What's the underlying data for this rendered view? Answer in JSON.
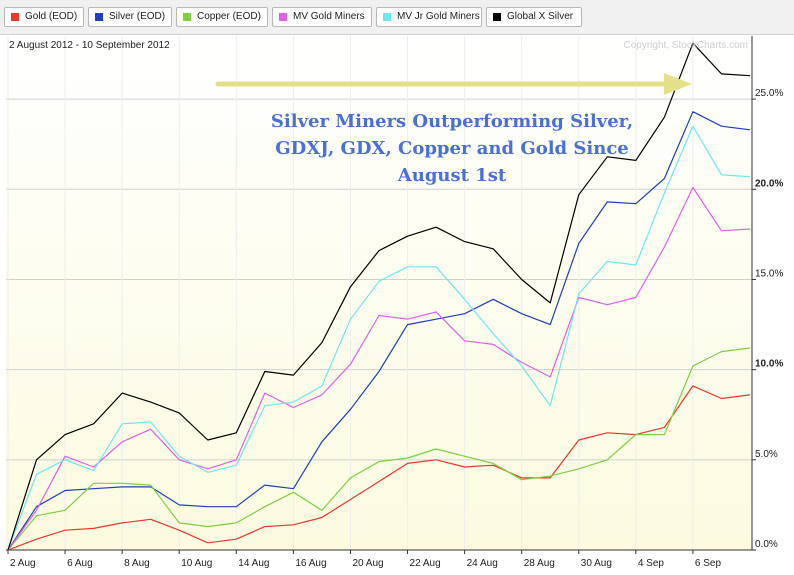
{
  "legend": [
    {
      "label": "Gold (EOD)",
      "color": "#e8392a"
    },
    {
      "label": "Silver (EOD)",
      "color": "#1f3fbf"
    },
    {
      "label": "Copper (EOD)",
      "color": "#7ed040"
    },
    {
      "label": "MV Gold Miners",
      "color": "#e060e8"
    },
    {
      "label": "MV Jr Gold Miners",
      "color": "#6ee6f0"
    },
    {
      "label": "Global X Silver",
      "color": "#000000"
    }
  ],
  "date_range": "2 August 2012 - 10 September 2012",
  "copyright": "Copyright, StockCharts.com",
  "annotation": {
    "lines": [
      "Silver Miners Outperforming Silver,",
      "GDXJ, GDX, Copper and Gold Since",
      "August 1st"
    ],
    "color": "#4a6fd8",
    "arrow_color": "#e4e08a"
  },
  "chart_data": {
    "type": "line",
    "x": [
      "2 Aug",
      "3 Aug",
      "6 Aug",
      "7 Aug",
      "8 Aug",
      "9 Aug",
      "10 Aug",
      "13 Aug",
      "14 Aug",
      "15 Aug",
      "16 Aug",
      "17 Aug",
      "20 Aug",
      "21 Aug",
      "22 Aug",
      "23 Aug",
      "24 Aug",
      "27 Aug",
      "28 Aug",
      "29 Aug",
      "30 Aug",
      "31 Aug",
      "4 Sep",
      "5 Sep",
      "6 Sep",
      "7 Sep",
      "10 Sep"
    ],
    "x_tick_labels": [
      "2 Aug",
      "6 Aug",
      "8 Aug",
      "10 Aug",
      "14 Aug",
      "16 Aug",
      "20 Aug",
      "22 Aug",
      "24 Aug",
      "28 Aug",
      "30 Aug",
      "4 Sep",
      "6 Sep"
    ],
    "x_tick_indices": [
      0,
      2,
      4,
      6,
      8,
      10,
      12,
      14,
      16,
      18,
      20,
      22,
      24
    ],
    "y_ticks": [
      0,
      5,
      10,
      15,
      20,
      25
    ],
    "y_tick_labels": [
      "0.0%",
      "5.0%",
      "10.0%",
      "15.0%",
      "20.0%",
      "25.0%"
    ],
    "ylim": [
      0,
      28.5
    ],
    "grid": true,
    "series": [
      {
        "name": "Gold (EOD)",
        "values": [
          0,
          0.6,
          1.1,
          1.2,
          1.5,
          1.7,
          1.1,
          0.4,
          0.6,
          1.3,
          1.4,
          1.8,
          2.8,
          3.8,
          4.8,
          5.0,
          4.6,
          4.7,
          4.0,
          4.0,
          6.1,
          6.5,
          6.4,
          6.8,
          9.1,
          8.4,
          8.6
        ]
      },
      {
        "name": "Silver (EOD)",
        "values": [
          0,
          2.4,
          3.3,
          3.4,
          3.5,
          3.5,
          2.5,
          2.4,
          2.4,
          3.6,
          3.4,
          6.0,
          7.8,
          9.9,
          12.5,
          12.8,
          13.1,
          13.9,
          13.1,
          12.5,
          17.0,
          19.3,
          19.2,
          20.6,
          24.3,
          23.5,
          23.3
        ]
      },
      {
        "name": "Copper (EOD)",
        "values": [
          0,
          1.9,
          2.2,
          3.7,
          3.7,
          3.6,
          1.5,
          1.3,
          1.5,
          2.4,
          3.2,
          2.2,
          4.0,
          4.9,
          5.1,
          5.6,
          5.2,
          4.8,
          3.9,
          4.1,
          4.5,
          5.0,
          6.4,
          6.4,
          10.2,
          11.0,
          11.2
        ]
      },
      {
        "name": "MV Gold Miners",
        "values": [
          0,
          2.2,
          5.2,
          4.6,
          6.0,
          6.7,
          5.0,
          4.5,
          5.0,
          8.7,
          7.9,
          8.6,
          10.3,
          13.0,
          12.8,
          13.2,
          11.6,
          11.4,
          10.4,
          9.6,
          14.0,
          13.6,
          14.0,
          16.8,
          20.1,
          17.7,
          17.8
        ]
      },
      {
        "name": "MV Jr Gold Miners",
        "values": [
          0,
          4.2,
          5.0,
          4.4,
          7.0,
          7.1,
          5.2,
          4.3,
          4.7,
          8.0,
          8.2,
          9.1,
          12.8,
          14.9,
          15.7,
          15.7,
          13.9,
          12.0,
          10.2,
          8.0,
          14.2,
          16.0,
          15.8,
          19.8,
          23.5,
          20.8,
          20.7
        ]
      },
      {
        "name": "Global X Silver",
        "values": [
          0,
          5.0,
          6.4,
          7.0,
          8.7,
          8.2,
          7.6,
          6.1,
          6.5,
          9.9,
          9.7,
          11.5,
          14.6,
          16.6,
          17.4,
          17.9,
          17.1,
          16.7,
          15.0,
          13.7,
          19.7,
          21.8,
          21.6,
          24.0,
          28.1,
          26.4,
          26.3
        ]
      }
    ]
  }
}
